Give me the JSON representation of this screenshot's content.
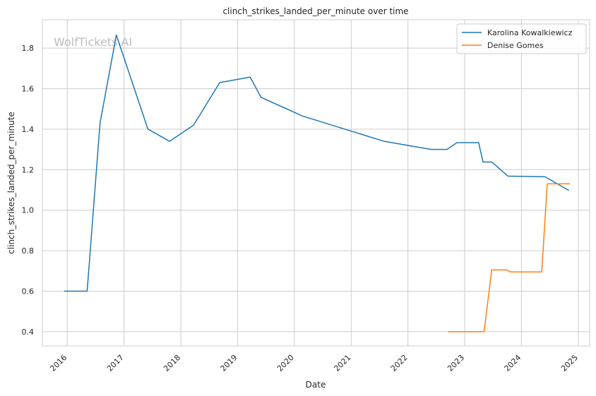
{
  "chart_data": {
    "type": "line",
    "title": "clinch_strikes_landed_per_minute over time",
    "xlabel": "Date",
    "ylabel": "clinch_strikes_landed_per_minute",
    "watermark": "WolfTickets.AI",
    "xlim": [
      "2015-07-25",
      "2025-03-15"
    ],
    "ylim": [
      0.33,
      1.94
    ],
    "x_ticks": [
      "2016-01-01",
      "2017-01-01",
      "2018-01-01",
      "2019-01-01",
      "2020-01-01",
      "2021-01-01",
      "2022-01-01",
      "2023-01-01",
      "2024-01-01",
      "2025-01-01"
    ],
    "x_tick_labels": [
      "2016",
      "2017",
      "2018",
      "2019",
      "2020",
      "2021",
      "2022",
      "2023",
      "2024",
      "2025"
    ],
    "y_ticks": [
      0.4,
      0.6,
      0.8,
      1.0,
      1.2,
      1.4,
      1.6,
      1.8
    ],
    "y_tick_labels": [
      "0.4",
      "0.6",
      "0.8",
      "1.0",
      "1.2",
      "1.4",
      "1.6",
      "1.8"
    ],
    "grid": true,
    "legend_position": "top-right",
    "series": [
      {
        "name": "Karolina Kowalkiewicz",
        "color": "#1f77b4",
        "points": [
          {
            "x": "2015-12-12",
            "y": 0.6
          },
          {
            "x": "2016-05-08",
            "y": 0.6
          },
          {
            "x": "2016-07-30",
            "y": 1.43
          },
          {
            "x": "2016-11-12",
            "y": 1.865
          },
          {
            "x": "2017-06-03",
            "y": 1.4
          },
          {
            "x": "2017-10-21",
            "y": 1.34
          },
          {
            "x": "2018-03-24",
            "y": 1.42
          },
          {
            "x": "2018-09-08",
            "y": 1.63
          },
          {
            "x": "2019-03-23",
            "y": 1.657
          },
          {
            "x": "2019-06-01",
            "y": 1.557
          },
          {
            "x": "2020-02-22",
            "y": 1.465
          },
          {
            "x": "2021-07-31",
            "y": 1.34
          },
          {
            "x": "2022-05-28",
            "y": 1.3
          },
          {
            "x": "2022-09-10",
            "y": 1.3
          },
          {
            "x": "2022-11-12",
            "y": 1.333
          },
          {
            "x": "2023-04-01",
            "y": 1.333
          },
          {
            "x": "2023-04-29",
            "y": 1.238
          },
          {
            "x": "2023-06-24",
            "y": 1.238
          },
          {
            "x": "2023-10-07",
            "y": 1.168
          },
          {
            "x": "2024-06-01",
            "y": 1.165
          },
          {
            "x": "2024-11-02",
            "y": 1.097
          }
        ]
      },
      {
        "name": "Denise Gomes",
        "color": "#ff7f0e",
        "points": [
          {
            "x": "2022-09-17",
            "y": 0.4
          },
          {
            "x": "2023-05-06",
            "y": 0.4
          },
          {
            "x": "2023-06-24",
            "y": 0.705
          },
          {
            "x": "2023-09-30",
            "y": 0.705
          },
          {
            "x": "2023-10-21",
            "y": 0.695
          },
          {
            "x": "2024-05-11",
            "y": 0.695
          },
          {
            "x": "2024-06-15",
            "y": 1.13
          },
          {
            "x": "2024-11-09",
            "y": 1.13
          }
        ]
      }
    ]
  }
}
